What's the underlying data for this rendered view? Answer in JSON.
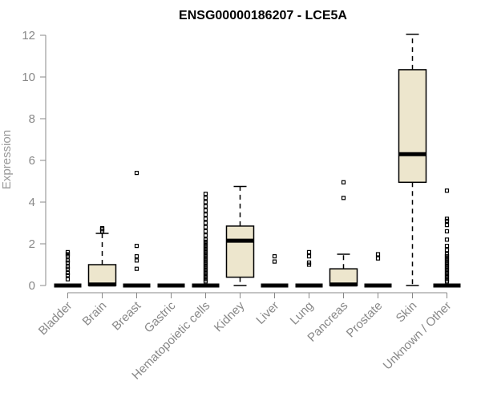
{
  "chart_data": {
    "type": "box",
    "title": "ENSG00000186207 - LCE5A",
    "xlabel": "",
    "ylabel": "Expression",
    "ylim": [
      0,
      12
    ],
    "yticks": [
      0,
      2,
      4,
      6,
      8,
      10,
      12
    ],
    "grid": false,
    "legend": "none",
    "box_fill": "#ede6cd",
    "categories": [
      "Bladder",
      "Brain",
      "Breast",
      "Gastric",
      "Hematopoietic cells",
      "Kidney",
      "Liver",
      "Lung",
      "Pancreas",
      "Prostate",
      "Skin",
      "Unknown / Other"
    ],
    "boxes": [
      {
        "category": "Bladder",
        "whisker_low": 0,
        "q1": 0,
        "median": 0,
        "q3": 0,
        "whisker_high": 0,
        "outliers": [
          0.3,
          0.5,
          0.6,
          0.8,
          0.9,
          1.1,
          1.2,
          1.4,
          1.5,
          1.6
        ]
      },
      {
        "category": "Brain",
        "whisker_low": 0,
        "q1": 0,
        "median": 0.05,
        "q3": 1.0,
        "whisker_high": 2.5,
        "outliers": [
          2.6,
          2.7,
          2.75
        ]
      },
      {
        "category": "Breast",
        "whisker_low": 0,
        "q1": 0,
        "median": 0,
        "q3": 0,
        "whisker_high": 0,
        "outliers": [
          0.8,
          1.2,
          1.4,
          1.9,
          5.4
        ]
      },
      {
        "category": "Gastric",
        "whisker_low": 0,
        "q1": 0,
        "median": 0,
        "q3": 0,
        "whisker_high": 0,
        "outliers": []
      },
      {
        "category": "Hematopoietic cells",
        "whisker_low": 0,
        "q1": 0,
        "median": 0,
        "q3": 0,
        "whisker_high": 0,
        "outliers": [
          0.2,
          0.3,
          0.4,
          0.5,
          0.6,
          0.7,
          0.8,
          0.9,
          1.0,
          1.1,
          1.2,
          1.3,
          1.4,
          1.5,
          1.6,
          1.7,
          1.8,
          1.9,
          2.0,
          2.1,
          2.2,
          2.4,
          2.6,
          2.8,
          3.0,
          3.2,
          3.4,
          3.6,
          3.8,
          4.0,
          4.2,
          4.4
        ]
      },
      {
        "category": "Kidney",
        "whisker_low": 0,
        "q1": 0.4,
        "median": 2.15,
        "q3": 2.85,
        "whisker_high": 4.75,
        "outliers": []
      },
      {
        "category": "Liver",
        "whisker_low": 0,
        "q1": 0,
        "median": 0,
        "q3": 0,
        "whisker_high": 0,
        "outliers": [
          1.15,
          1.4
        ]
      },
      {
        "category": "Lung",
        "whisker_low": 0,
        "q1": 0,
        "median": 0,
        "q3": 0,
        "whisker_high": 0,
        "outliers": [
          1.0,
          1.1,
          1.4,
          1.6
        ]
      },
      {
        "category": "Pancreas",
        "whisker_low": 0,
        "q1": 0,
        "median": 0.05,
        "q3": 0.8,
        "whisker_high": 1.5,
        "outliers": [
          4.2,
          4.95
        ]
      },
      {
        "category": "Prostate",
        "whisker_low": 0,
        "q1": 0,
        "median": 0,
        "q3": 0,
        "whisker_high": 0,
        "outliers": [
          1.3,
          1.5
        ]
      },
      {
        "category": "Skin",
        "whisker_low": 0,
        "q1": 4.95,
        "median": 6.3,
        "q3": 10.35,
        "whisker_high": 12.05,
        "outliers": []
      },
      {
        "category": "Unknown / Other",
        "whisker_low": 0,
        "q1": 0,
        "median": 0,
        "q3": 0,
        "whisker_high": 0,
        "outliers": [
          0.2,
          0.3,
          0.4,
          0.5,
          0.6,
          0.7,
          0.8,
          0.9,
          1.0,
          1.1,
          1.2,
          1.3,
          1.4,
          1.5,
          1.7,
          1.9,
          2.2,
          2.6,
          2.9,
          3.1,
          3.2,
          4.55
        ]
      }
    ]
  }
}
